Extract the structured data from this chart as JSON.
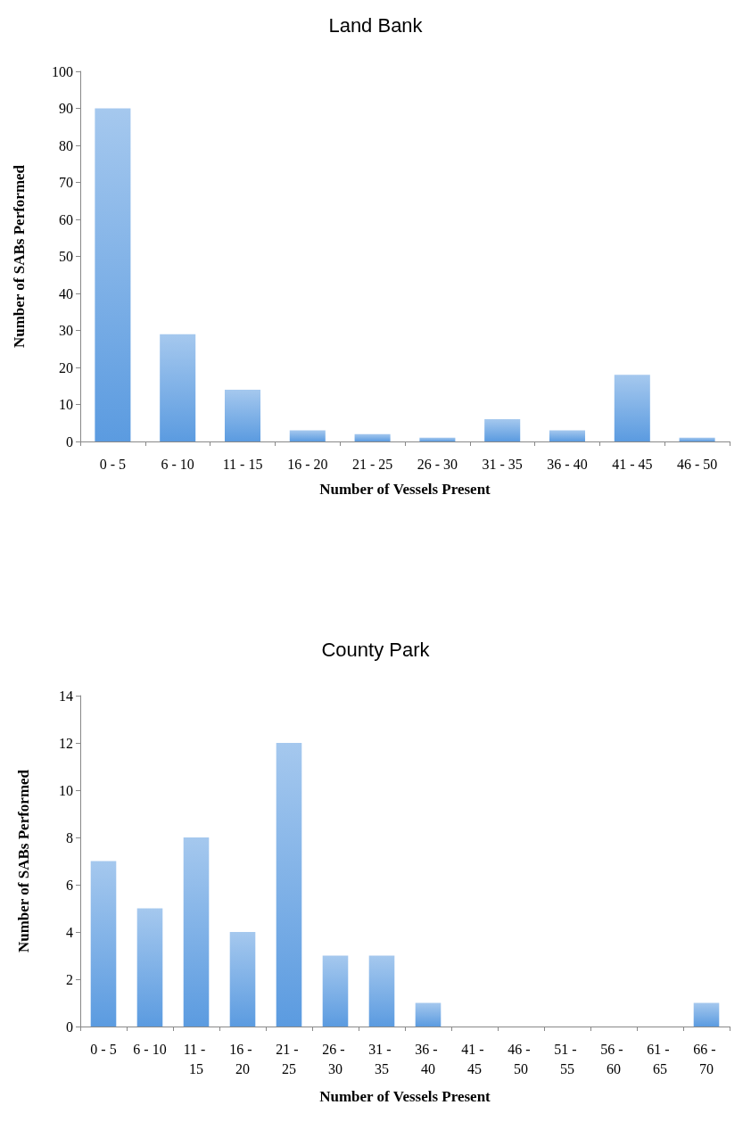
{
  "chart_data": [
    {
      "type": "bar",
      "title": "Land Bank",
      "xlabel": "Number of Vessels Present",
      "ylabel": "Number of SABs Performed",
      "categories": [
        "0 - 5",
        "6 - 10",
        "11 - 15",
        "16 - 20",
        "21 - 25",
        "26 - 30",
        "31 - 35",
        "36 - 40",
        "41 - 45",
        "46 - 50"
      ],
      "values": [
        90,
        29,
        14,
        3,
        2,
        1,
        6,
        3,
        18,
        1
      ],
      "color": "#5b9be0",
      "ylim": [
        0,
        100
      ],
      "yticks": [
        0,
        10,
        20,
        30,
        40,
        50,
        60,
        70,
        80,
        90,
        100
      ],
      "grid": false
    },
    {
      "type": "bar",
      "title": "County Park",
      "xlabel": "Number of Vessels Present",
      "ylabel": "Number of SABs Performed",
      "categories": [
        "0 - 5",
        "6 - 10",
        "11 - 15",
        "16 - 20",
        "21 - 25",
        "26 - 30",
        "31 - 35",
        "36 - 40",
        "41 - 45",
        "46 - 50",
        "51 - 55",
        "56 - 60",
        "61 - 65",
        "66 - 70"
      ],
      "values": [
        7,
        5,
        8,
        4,
        12,
        3,
        3,
        1,
        0,
        0,
        0,
        0,
        0,
        1
      ],
      "color": "#5b9be0",
      "ylim": [
        0,
        14
      ],
      "yticks": [
        0,
        2,
        4,
        6,
        8,
        10,
        12,
        14
      ],
      "grid": false
    }
  ]
}
